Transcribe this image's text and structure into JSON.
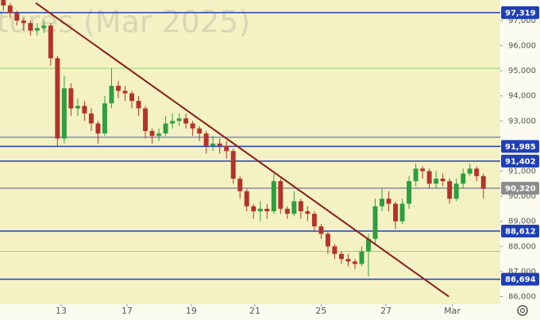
{
  "chart_data": {
    "type": "candlestick",
    "watermark": "tures (Mar 2025)",
    "xlim": [
      -0.5,
      73.5
    ],
    "xticks": [
      {
        "value": 8.55,
        "label": "13"
      },
      {
        "value": 18.3,
        "label": "17"
      },
      {
        "value": 27.8,
        "label": "19"
      },
      {
        "value": 37.2,
        "label": "21"
      },
      {
        "value": 47,
        "label": "25"
      },
      {
        "value": 56.6,
        "label": "27"
      },
      {
        "value": 66.4,
        "label": "Mar"
      }
    ],
    "ylim": [
      85700,
      97820
    ],
    "yticks": [
      {
        "value": 86000,
        "label": "86,000"
      },
      {
        "value": 87000,
        "label": "87,000"
      },
      {
        "value": 88000,
        "label": "88,000"
      },
      {
        "value": 89000,
        "label": "89,000"
      },
      {
        "value": 90000,
        "label": "90,000"
      },
      {
        "value": 91000,
        "label": "91,000"
      },
      {
        "value": 92000,
        "label": "92,000"
      },
      {
        "value": 93000,
        "label": "93,000"
      },
      {
        "value": 94000,
        "label": "94,000"
      },
      {
        "value": 95000,
        "label": "95,000"
      },
      {
        "value": 96000,
        "label": "96,000"
      },
      {
        "value": 97000,
        "label": "97,000"
      }
    ],
    "up_color": "#2e9e3e",
    "down_color": "#b5322b",
    "open": [
      97900,
      97600,
      97300,
      97000,
      96900,
      96600,
      96700,
      96800,
      95500,
      92300,
      94300,
      93500,
      93600,
      93300,
      92900,
      92500,
      93700,
      94400,
      94200,
      94100,
      93800,
      93500,
      92600,
      92400,
      92500,
      92900,
      93000,
      93100,
      92900,
      92700,
      92500,
      92000,
      92100,
      92000,
      91800,
      90700,
      90200,
      89600,
      89400,
      89500,
      89400,
      90600,
      89500,
      89300,
      89800,
      89400,
      89300,
      88800,
      88500,
      88000,
      87700,
      87500,
      87400,
      87300,
      87800,
      88300,
      89600,
      89900,
      89700,
      89000,
      89700,
      90600,
      91100,
      91000,
      90500,
      90700,
      90600,
      89900,
      90500,
      90900,
      91100,
      90800
    ],
    "high": [
      98000,
      97700,
      97400,
      97100,
      97000,
      96900,
      97000,
      96900,
      95600,
      94800,
      94500,
      93900,
      93800,
      93500,
      93000,
      94000,
      95100,
      94600,
      94400,
      94200,
      94000,
      93600,
      92700,
      92700,
      93200,
      93300,
      93300,
      93300,
      93000,
      92800,
      92600,
      92400,
      92300,
      92200,
      91900,
      90800,
      90300,
      89700,
      89800,
      89700,
      90900,
      90700,
      89600,
      90200,
      89900,
      89600,
      89400,
      88900,
      88600,
      88100,
      87800,
      87700,
      87500,
      88000,
      88500,
      89900,
      90300,
      90200,
      89800,
      89900,
      90800,
      91300,
      91200,
      91100,
      91000,
      90900,
      90700,
      90700,
      91100,
      91300,
      91200,
      90900
    ],
    "low": [
      97400,
      97100,
      96800,
      96600,
      96400,
      96400,
      96500,
      95200,
      92000,
      92100,
      93200,
      93200,
      93000,
      92600,
      92100,
      92400,
      93500,
      93900,
      93800,
      93500,
      93200,
      92300,
      92100,
      92200,
      92400,
      92700,
      92800,
      92700,
      92400,
      92200,
      91700,
      91800,
      91700,
      91500,
      90500,
      89900,
      89400,
      89100,
      89000,
      89100,
      89300,
      89300,
      89100,
      89200,
      89100,
      89000,
      88600,
      88300,
      87700,
      87500,
      87300,
      87200,
      87100,
      87200,
      86800,
      88100,
      89400,
      89400,
      88700,
      88900,
      89500,
      90400,
      90700,
      90300,
      90300,
      90400,
      89700,
      89800,
      90300,
      90800,
      90600,
      89900
    ],
    "close": [
      97600,
      97300,
      97000,
      96900,
      96600,
      96700,
      96800,
      95500,
      92300,
      94300,
      93500,
      93600,
      93300,
      92900,
      92500,
      93700,
      94400,
      94200,
      94100,
      93800,
      93500,
      92600,
      92400,
      92500,
      92900,
      93000,
      93100,
      92900,
      92700,
      92500,
      92000,
      92100,
      92000,
      91800,
      90700,
      90200,
      89600,
      89400,
      89500,
      89400,
      90600,
      89500,
      89300,
      89800,
      89400,
      89300,
      88800,
      88500,
      88000,
      87700,
      87500,
      87400,
      87300,
      87800,
      88300,
      89600,
      89900,
      89700,
      89000,
      89700,
      90600,
      91100,
      91000,
      90500,
      90700,
      90600,
      89900,
      90500,
      90900,
      91100,
      90800,
      90300
    ],
    "price_levels": [
      {
        "value": 97319,
        "label": "97,319",
        "color": "#1f3fb5"
      },
      {
        "value": 91985,
        "label": "91,985",
        "color": "#1f3fb5"
      },
      {
        "value": 91402,
        "label": "91,402",
        "color": "#1f3fb5"
      },
      {
        "value": 88612,
        "label": "88,612",
        "color": "#1f3fb5"
      },
      {
        "value": 86694,
        "label": "86,694",
        "color": "#1f3fb5"
      },
      {
        "value": 90320,
        "label": "90,320",
        "color": "#8c8c8c"
      }
    ],
    "guide_lines": [
      {
        "value": 95100,
        "color": "#8fd36a"
      },
      {
        "value": 92350,
        "color": "#3a56c0"
      },
      {
        "value": 87800,
        "color": "#8fd36a"
      }
    ],
    "trendline": {
      "color": "#8b1a1a",
      "x": [
        4.8,
        65.9
      ],
      "y": [
        97700,
        86000
      ]
    }
  }
}
